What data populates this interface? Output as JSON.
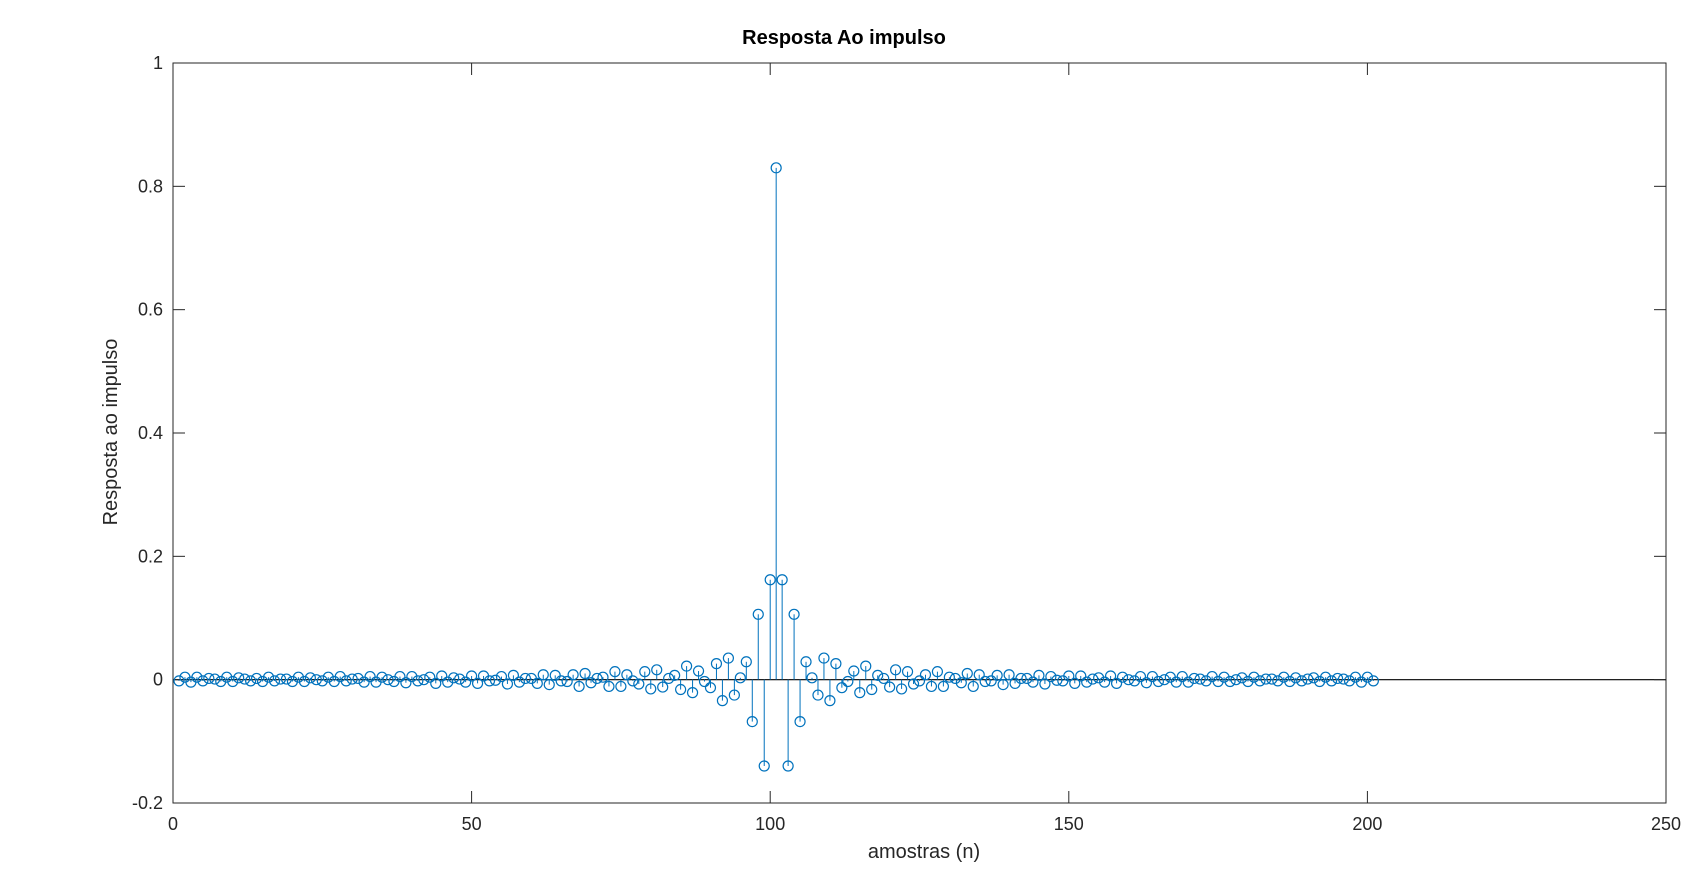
{
  "chart_data": {
    "type": "stem",
    "title": "Resposta Ao impulso",
    "xlabel": "amostras (n)",
    "ylabel": "Resposta ao impulso",
    "xlim": [
      0,
      250
    ],
    "ylim": [
      -0.2,
      1
    ],
    "xticks": [
      0,
      50,
      100,
      150,
      200,
      250
    ],
    "yticks": [
      -0.2,
      0,
      0.2,
      0.4,
      0.6,
      0.8,
      1
    ],
    "xtick_labels": [
      "0",
      "50",
      "100",
      "150",
      "200",
      "250"
    ],
    "ytick_labels": [
      "-0.2",
      "0",
      "0.2",
      "0.4",
      "0.6",
      "0.8",
      "1"
    ],
    "grid": false,
    "baseline": 0,
    "color": "#0072bd",
    "series": [
      {
        "x_start": 1,
        "x_end": 201,
        "values": [
          -0.002,
          0.004,
          -0.004,
          0.004,
          -0.002,
          0.002,
          0.001,
          -0.003,
          0.004,
          -0.003,
          0.003,
          0.001,
          -0.002,
          0.002,
          -0.003,
          0.004,
          -0.002,
          0.001,
          0.001,
          -0.003,
          0.004,
          -0.003,
          0.003,
          0.0,
          -0.002,
          0.004,
          -0.003,
          0.005,
          -0.002,
          0.001,
          0.002,
          -0.004,
          0.005,
          -0.004,
          0.004,
          0.0,
          -0.003,
          0.005,
          -0.005,
          0.005,
          -0.002,
          0.0,
          0.004,
          -0.006,
          0.006,
          -0.004,
          0.003,
          0.001,
          -0.004,
          0.006,
          -0.006,
          0.006,
          -0.002,
          -0.001,
          0.005,
          -0.007,
          0.007,
          -0.004,
          0.002,
          0.002,
          -0.006,
          0.008,
          -0.008,
          0.007,
          -0.002,
          -0.003,
          0.008,
          -0.011,
          0.01,
          -0.005,
          0.002,
          0.004,
          -0.011,
          0.013,
          -0.011,
          0.008,
          -0.002,
          -0.007,
          0.013,
          -0.015,
          0.016,
          -0.012,
          0.002,
          0.007,
          -0.016,
          0.022,
          -0.021,
          0.014,
          -0.003,
          -0.013,
          0.026,
          -0.034,
          0.035,
          -0.025,
          0.003,
          0.029,
          -0.068,
          0.106,
          -0.14,
          0.162,
          0.83,
          0.162,
          -0.14,
          0.106,
          -0.068,
          0.029,
          0.003,
          -0.025,
          0.035,
          -0.034,
          0.026,
          -0.013,
          -0.003,
          0.014,
          -0.021,
          0.022,
          -0.016,
          0.007,
          0.002,
          -0.012,
          0.016,
          -0.015,
          0.013,
          -0.007,
          -0.002,
          0.008,
          -0.011,
          0.013,
          -0.011,
          0.004,
          0.002,
          -0.005,
          0.01,
          -0.011,
          0.008,
          -0.003,
          -0.002,
          0.007,
          -0.008,
          0.008,
          -0.006,
          0.002,
          0.002,
          -0.004,
          0.007,
          -0.007,
          0.005,
          -0.001,
          -0.002,
          0.006,
          -0.006,
          0.006,
          -0.004,
          0.001,
          0.003,
          -0.004,
          0.006,
          -0.006,
          0.004,
          0.0,
          -0.002,
          0.005,
          -0.005,
          0.005,
          -0.003,
          0.0,
          0.004,
          -0.004,
          0.005,
          -0.004,
          0.002,
          0.001,
          -0.002,
          0.005,
          -0.003,
          0.004,
          -0.003,
          0.0,
          0.003,
          -0.003,
          0.004,
          -0.002,
          0.001,
          0.001,
          -0.002,
          0.004,
          -0.003,
          0.003,
          -0.002,
          0.001,
          0.003,
          -0.003,
          0.004,
          -0.002,
          0.002,
          0.001,
          -0.002,
          0.004,
          -0.004,
          0.004,
          -0.002
        ]
      }
    ]
  }
}
